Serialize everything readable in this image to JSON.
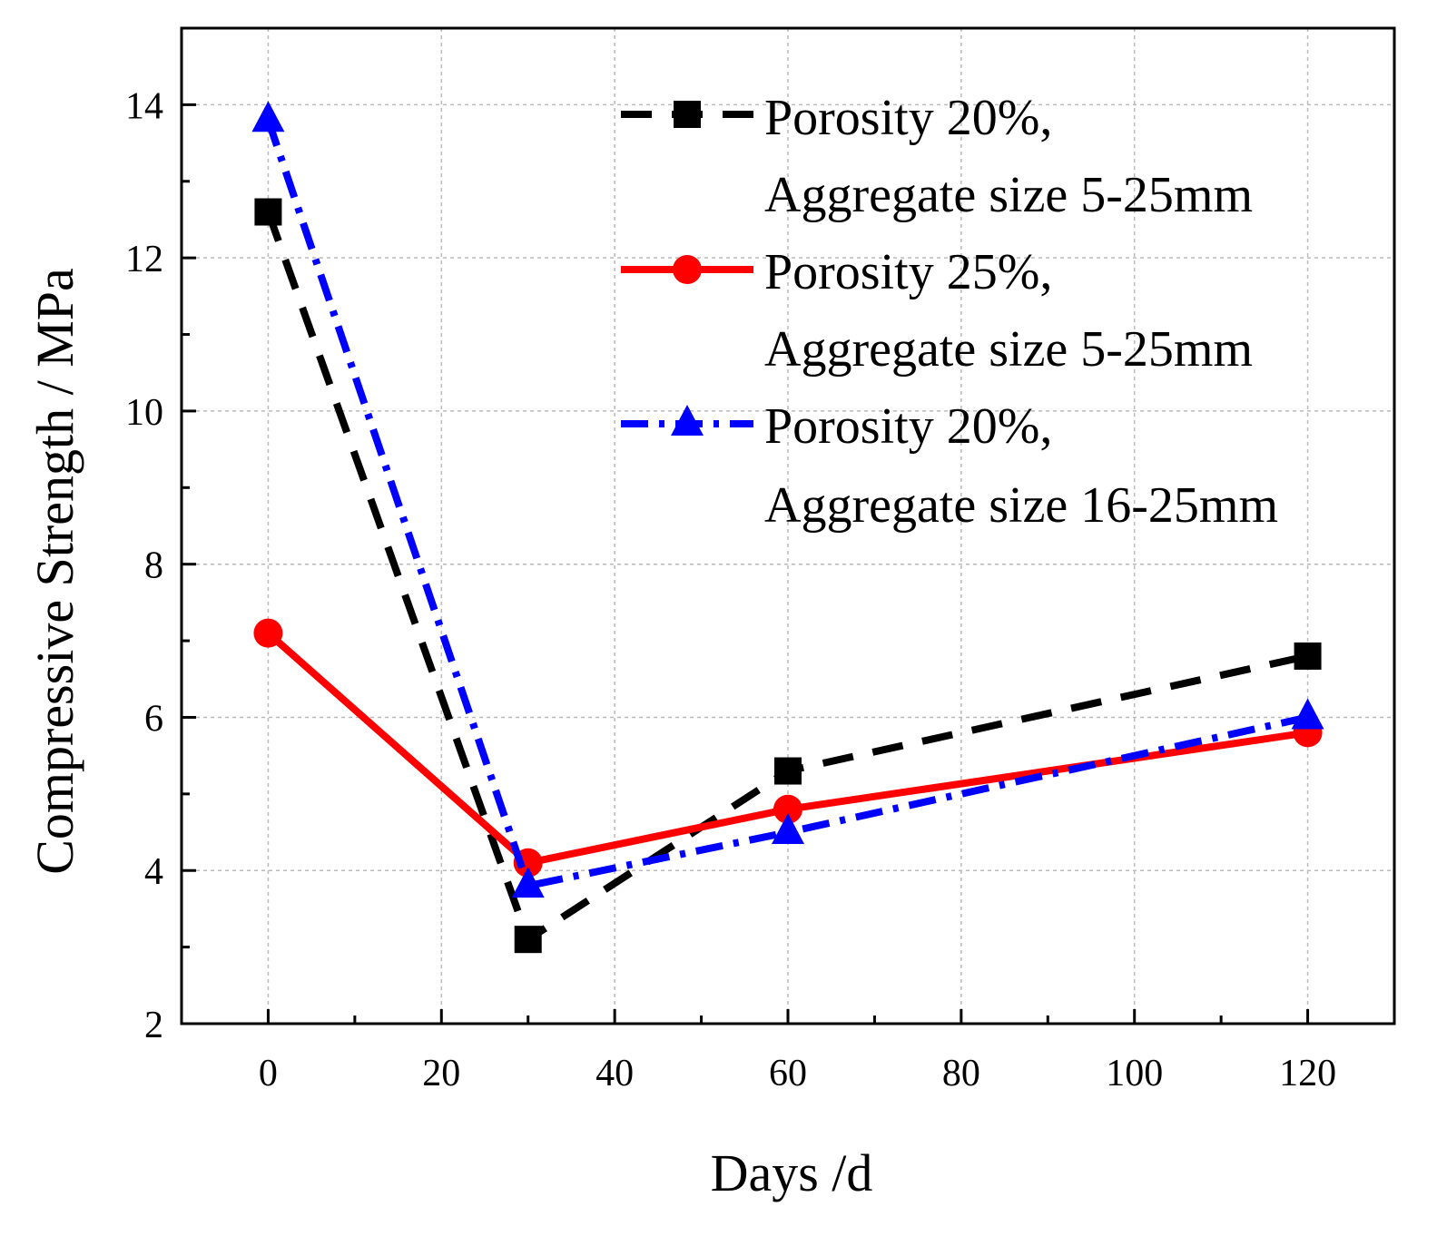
{
  "chart_data": {
    "type": "line",
    "title": "",
    "xlabel": "Days /d",
    "ylabel": "Compressive Strength / MPa",
    "xlim": [
      -10,
      130
    ],
    "ylim": [
      2,
      15
    ],
    "xticks": [
      0,
      20,
      40,
      60,
      80,
      100,
      120
    ],
    "yticks": [
      2,
      4,
      6,
      8,
      10,
      12,
      14
    ],
    "grid": true,
    "legend_position": "top-right",
    "series": [
      {
        "name_line1": "Porosity 20%,",
        "name_line2": "Aggregate size 5-25mm",
        "color": "#000000",
        "marker": "square",
        "line_style": "dash",
        "x": [
          0,
          30,
          60,
          120
        ],
        "values": [
          12.6,
          3.1,
          5.3,
          6.8
        ]
      },
      {
        "name_line1": "Porosity 25%,",
        "name_line2": "Aggregate size 5-25mm",
        "color": "#ff0000",
        "marker": "circle",
        "line_style": "solid",
        "x": [
          0,
          30,
          60,
          120
        ],
        "values": [
          7.1,
          4.1,
          4.8,
          5.8
        ]
      },
      {
        "name_line1": "Porosity 20%,",
        "name_line2": "Aggregate size 16-25mm",
        "color": "#0000ff",
        "marker": "triangle",
        "line_style": "dashdot",
        "x": [
          0,
          30,
          60,
          120
        ],
        "values": [
          13.8,
          3.8,
          4.5,
          6.0
        ]
      }
    ]
  }
}
